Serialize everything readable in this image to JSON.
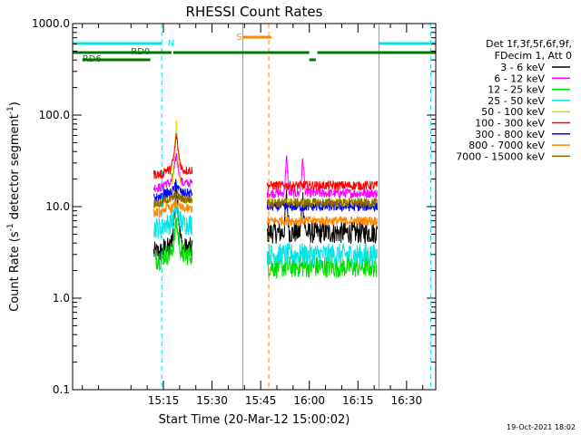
{
  "chart_data": {
    "type": "line",
    "title": "RHESSI Count Rates",
    "xlabel": "Start Time (20-Mar-12 15:00:02)",
    "ylabel_main": "Count Rate (s",
    "ylabel_sup1": "-1",
    "ylabel_mid": " detector segment",
    "ylabel_sup2": "-1",
    "ylabel_end": ")",
    "timestamp": "19-Oct-2021 18:02",
    "y_scale": "log",
    "ylim": [
      0.1,
      1000.0
    ],
    "xlim_minutes": [
      0,
      76
    ],
    "x_ticks": [
      {
        "min": 15,
        "label": "15:15"
      },
      {
        "min": 30,
        "label": "15:30"
      },
      {
        "min": 45,
        "label": "15:45"
      },
      {
        "min": 60,
        "label": "16:00"
      },
      {
        "min": 75,
        "label": "16:15"
      },
      {
        "min": 90,
        "label": "16:30"
      }
    ],
    "y_ticks": [
      {
        "value": 0.1,
        "label": "0.1"
      },
      {
        "value": 1.0,
        "label": "1.0"
      },
      {
        "value": 10.0,
        "label": "10.0"
      },
      {
        "value": 100.0,
        "label": "100.0"
      },
      {
        "value": 1000.0,
        "label": "1000.0"
      }
    ],
    "legend": {
      "header_line1": "Det 1f,3f,5f,6f,9f,",
      "header_line2": "FDecim 1, Att 0",
      "placement": "right"
    },
    "series": [
      {
        "name": "3 - 6 keV",
        "color": "#000000",
        "pre": 3.5,
        "post": 5.2,
        "peak": 20
      },
      {
        "name": "6 - 12 keV",
        "color": "#ff00ff",
        "pre": 18,
        "post": 14,
        "peak": 38
      },
      {
        "name": "12 - 25 keV",
        "color": "#00dd00",
        "pre": 3.0,
        "post": 2.2,
        "peak": 7
      },
      {
        "name": "25 - 50 keV",
        "color": "#00e5e5",
        "pre": 6.5,
        "post": 3.0,
        "peak": 10
      },
      {
        "name": "50 - 100 keV",
        "color": "#dddd00",
        "pre": 12,
        "post": 11,
        "peak": 100
      },
      {
        "name": "100 - 300 keV",
        "color": "#ff0000",
        "pre": 25,
        "post": 17,
        "peak": 62
      },
      {
        "name": "300 - 800 keV",
        "color": "#0000ff",
        "pre": 14,
        "post": 10,
        "peak": 18
      },
      {
        "name": "800 - 7000 keV",
        "color": "#ff8800",
        "pre": 9.5,
        "post": 7,
        "peak": 11
      },
      {
        "name": "7000 - 15000 keV",
        "color": "#886600",
        "pre": 12,
        "post": 11,
        "peak": 14
      }
    ],
    "annotations": {
      "N": {
        "label": "N",
        "color": "#00e5e5"
      },
      "S": {
        "label": "S",
        "color": "#ff8800"
      },
      "RD0": {
        "label": "RD0",
        "color": "#007700"
      },
      "RD6": {
        "label": "RD6",
        "color": "#007700"
      }
    }
  }
}
